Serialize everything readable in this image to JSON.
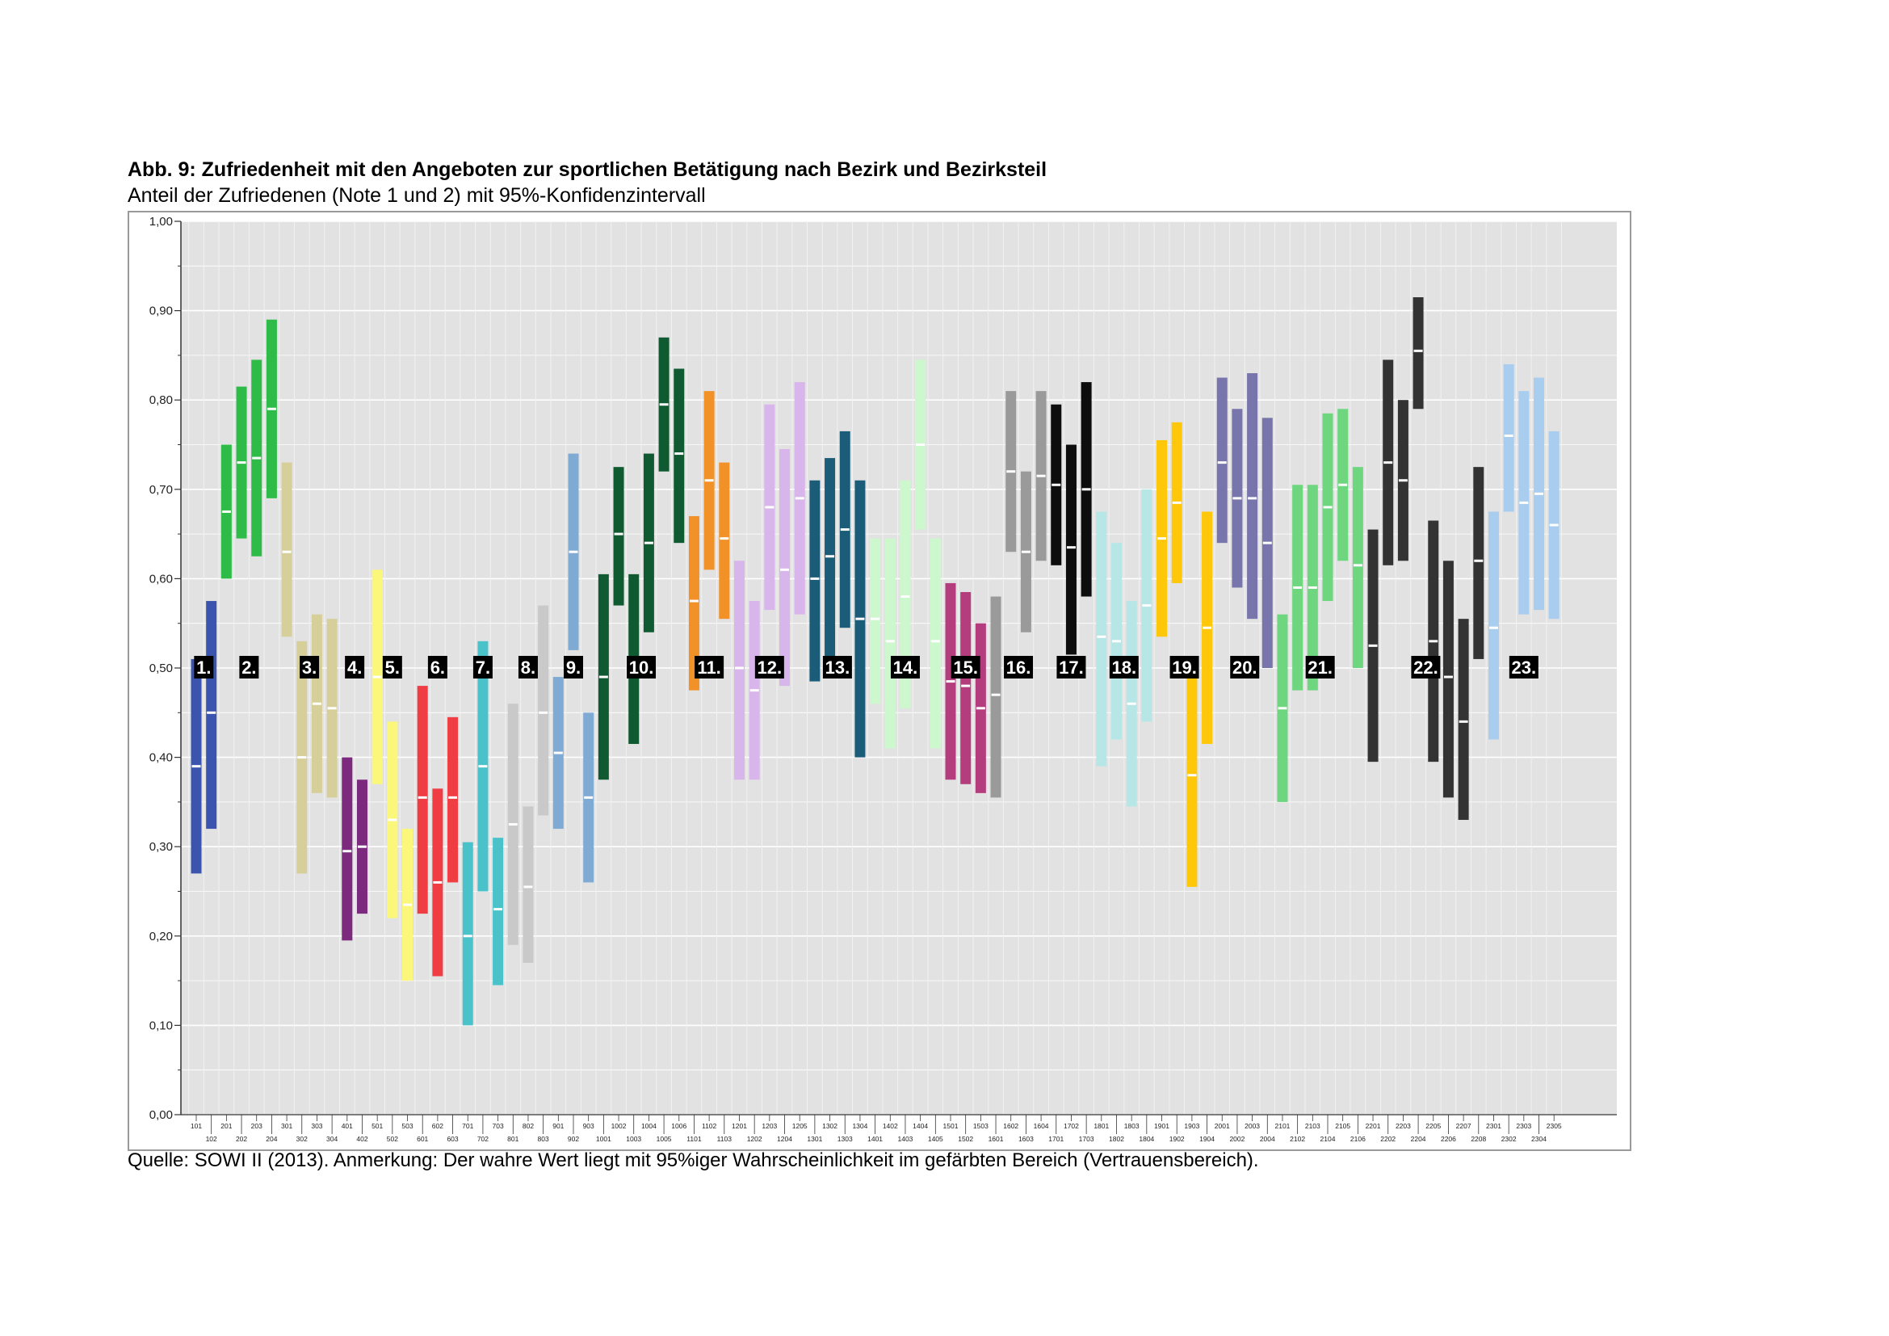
{
  "title": "Abb. 9: Zufriedenheit mit den Angeboten zur sportlichen Betätigung nach Bezirk und Bezirksteil",
  "subtitle": "Anteil der Zufriedenen (Note 1 und 2) mit 95%-Konfidenzintervall",
  "source": "Quelle: SOWI II (2013). Anmerkung: Der wahre Wert liegt mit 95%iger Wahrscheinlichkeit im gefärbten Bereich (Vertrauensbereich).",
  "chart_data": {
    "type": "range-bar",
    "ylim": [
      0,
      1
    ],
    "yticks": [
      "0,00",
      "0,10",
      "0,20",
      "0,30",
      "0,40",
      "0,50",
      "0,60",
      "0,70",
      "0,80",
      "0,90",
      "1,00"
    ],
    "grid": true,
    "groups": [
      {
        "label": "1.",
        "color": "#3b55ae",
        "bars": [
          {
            "id": "101",
            "low": 0.27,
            "mean": 0.39,
            "high": 0.51
          },
          {
            "id": "102",
            "low": 0.32,
            "mean": 0.45,
            "high": 0.575
          }
        ]
      },
      {
        "label": "2.",
        "color": "#2fbb47",
        "bars": [
          {
            "id": "201",
            "low": 0.6,
            "mean": 0.675,
            "high": 0.75
          },
          {
            "id": "202",
            "low": 0.645,
            "mean": 0.73,
            "high": 0.815
          },
          {
            "id": "203",
            "low": 0.625,
            "mean": 0.735,
            "high": 0.845
          },
          {
            "id": "204",
            "low": 0.69,
            "mean": 0.79,
            "high": 0.89
          }
        ]
      },
      {
        "label": "3.",
        "color": "#d7cf9a",
        "bars": [
          {
            "id": "301",
            "low": 0.535,
            "mean": 0.63,
            "high": 0.73
          },
          {
            "id": "302",
            "low": 0.27,
            "mean": 0.4,
            "high": 0.53
          },
          {
            "id": "303",
            "low": 0.36,
            "mean": 0.46,
            "high": 0.56
          },
          {
            "id": "304",
            "low": 0.355,
            "mean": 0.455,
            "high": 0.555
          }
        ]
      },
      {
        "label": "4.",
        "color": "#7b2a7e",
        "bars": [
          {
            "id": "401",
            "low": 0.195,
            "mean": 0.295,
            "high": 0.4
          },
          {
            "id": "402",
            "low": 0.225,
            "mean": 0.3,
            "high": 0.375
          }
        ]
      },
      {
        "label": "5.",
        "color": "#fbf77a",
        "bars": [
          {
            "id": "501",
            "low": 0.37,
            "mean": 0.49,
            "high": 0.61
          },
          {
            "id": "502",
            "low": 0.22,
            "mean": 0.33,
            "high": 0.44
          },
          {
            "id": "503",
            "low": 0.15,
            "mean": 0.235,
            "high": 0.32
          }
        ]
      },
      {
        "label": "6.",
        "color": "#f03c43",
        "bars": [
          {
            "id": "601",
            "low": 0.225,
            "mean": 0.355,
            "high": 0.48
          },
          {
            "id": "602",
            "low": 0.155,
            "mean": 0.26,
            "high": 0.365
          },
          {
            "id": "603",
            "low": 0.26,
            "mean": 0.355,
            "high": 0.445
          }
        ]
      },
      {
        "label": "7.",
        "color": "#49c2c9",
        "bars": [
          {
            "id": "701",
            "low": 0.1,
            "mean": 0.2,
            "high": 0.305
          },
          {
            "id": "702",
            "low": 0.25,
            "mean": 0.39,
            "high": 0.53
          },
          {
            "id": "703",
            "low": 0.145,
            "mean": 0.23,
            "high": 0.31
          }
        ]
      },
      {
        "label": "8.",
        "color": "#c9c9c9",
        "bars": [
          {
            "id": "801",
            "low": 0.19,
            "mean": 0.325,
            "high": 0.46
          },
          {
            "id": "802",
            "low": 0.17,
            "mean": 0.255,
            "high": 0.345
          },
          {
            "id": "803",
            "low": 0.335,
            "mean": 0.45,
            "high": 0.57
          }
        ]
      },
      {
        "label": "9.",
        "color": "#7faad4",
        "bars": [
          {
            "id": "901",
            "low": 0.32,
            "mean": 0.405,
            "high": 0.49
          },
          {
            "id": "902",
            "low": 0.52,
            "mean": 0.63,
            "high": 0.74
          },
          {
            "id": "903",
            "low": 0.26,
            "mean": 0.355,
            "high": 0.45
          }
        ]
      },
      {
        "label": "10.",
        "color": "#0f5a30",
        "bars": [
          {
            "id": "1001",
            "low": 0.375,
            "mean": 0.49,
            "high": 0.605
          },
          {
            "id": "1002",
            "low": 0.57,
            "mean": 0.65,
            "high": 0.725
          },
          {
            "id": "1003",
            "low": 0.415,
            "mean": 0.51,
            "high": 0.605
          },
          {
            "id": "1004",
            "low": 0.54,
            "mean": 0.64,
            "high": 0.74
          },
          {
            "id": "1005",
            "low": 0.72,
            "mean": 0.795,
            "high": 0.87
          },
          {
            "id": "1006",
            "low": 0.64,
            "mean": 0.74,
            "high": 0.835
          }
        ]
      },
      {
        "label": "11.",
        "color": "#f19128",
        "bars": [
          {
            "id": "1101",
            "low": 0.475,
            "mean": 0.575,
            "high": 0.67
          },
          {
            "id": "1102",
            "low": 0.61,
            "mean": 0.71,
            "high": 0.81
          },
          {
            "id": "1103",
            "low": 0.555,
            "mean": 0.645,
            "high": 0.73
          }
        ]
      },
      {
        "label": "12.",
        "color": "#d8b5ea",
        "bars": [
          {
            "id": "1201",
            "low": 0.375,
            "mean": 0.5,
            "high": 0.62
          },
          {
            "id": "1202",
            "low": 0.375,
            "mean": 0.475,
            "high": 0.575
          },
          {
            "id": "1203",
            "low": 0.565,
            "mean": 0.68,
            "high": 0.795
          },
          {
            "id": "1204",
            "low": 0.48,
            "mean": 0.61,
            "high": 0.745
          },
          {
            "id": "1205",
            "low": 0.56,
            "mean": 0.69,
            "high": 0.82
          }
        ]
      },
      {
        "label": "13.",
        "color": "#1b5d79",
        "bars": [
          {
            "id": "1301",
            "low": 0.485,
            "mean": 0.6,
            "high": 0.71
          },
          {
            "id": "1302",
            "low": 0.51,
            "mean": 0.625,
            "high": 0.735
          },
          {
            "id": "1303",
            "low": 0.545,
            "mean": 0.655,
            "high": 0.765
          },
          {
            "id": "1304",
            "low": 0.4,
            "mean": 0.555,
            "high": 0.71
          }
        ]
      },
      {
        "label": "14.",
        "color": "#cdf8cd",
        "bars": [
          {
            "id": "1401",
            "low": 0.46,
            "mean": 0.555,
            "high": 0.645
          },
          {
            "id": "1402",
            "low": 0.41,
            "mean": 0.53,
            "high": 0.645
          },
          {
            "id": "1403",
            "low": 0.455,
            "mean": 0.58,
            "high": 0.71
          },
          {
            "id": "1404",
            "low": 0.655,
            "mean": 0.75,
            "high": 0.845
          },
          {
            "id": "1405",
            "low": 0.41,
            "mean": 0.53,
            "high": 0.645
          }
        ]
      },
      {
        "label": "15.",
        "color": "#b43d7e",
        "bars": [
          {
            "id": "1501",
            "low": 0.375,
            "mean": 0.485,
            "high": 0.595
          },
          {
            "id": "1502",
            "low": 0.37,
            "mean": 0.48,
            "high": 0.585
          },
          {
            "id": "1503",
            "low": 0.36,
            "mean": 0.455,
            "high": 0.55
          }
        ]
      },
      {
        "label": "16.",
        "color": "#9a9a9a",
        "bars": [
          {
            "id": "1601",
            "low": 0.355,
            "mean": 0.47,
            "high": 0.58
          },
          {
            "id": "1602",
            "low": 0.63,
            "mean": 0.72,
            "high": 0.81
          },
          {
            "id": "1603",
            "low": 0.54,
            "mean": 0.63,
            "high": 0.72
          },
          {
            "id": "1604",
            "low": 0.62,
            "mean": 0.715,
            "high": 0.81
          }
        ]
      },
      {
        "label": "17.",
        "color": "#0d0d0d",
        "bars": [
          {
            "id": "1701",
            "low": 0.615,
            "mean": 0.705,
            "high": 0.795
          },
          {
            "id": "1702",
            "low": 0.515,
            "mean": 0.635,
            "high": 0.75
          },
          {
            "id": "1703",
            "low": 0.58,
            "mean": 0.7,
            "high": 0.82
          }
        ]
      },
      {
        "label": "18.",
        "color": "#b7e6e6",
        "bars": [
          {
            "id": "1801",
            "low": 0.39,
            "mean": 0.535,
            "high": 0.675
          },
          {
            "id": "1802",
            "low": 0.42,
            "mean": 0.53,
            "high": 0.64
          },
          {
            "id": "1803",
            "low": 0.345,
            "mean": 0.46,
            "high": 0.575
          },
          {
            "id": "1804",
            "low": 0.44,
            "mean": 0.57,
            "high": 0.7
          }
        ]
      },
      {
        "label": "19.",
        "color": "#ffc70a",
        "bars": [
          {
            "id": "1901",
            "low": 0.535,
            "mean": 0.645,
            "high": 0.755
          },
          {
            "id": "1902",
            "low": 0.595,
            "mean": 0.685,
            "high": 0.775
          },
          {
            "id": "1903",
            "low": 0.255,
            "mean": 0.38,
            "high": 0.505
          },
          {
            "id": "1904",
            "low": 0.415,
            "mean": 0.545,
            "high": 0.675
          }
        ]
      },
      {
        "label": "20.",
        "color": "#7775ab",
        "bars": [
          {
            "id": "2001",
            "low": 0.64,
            "mean": 0.73,
            "high": 0.825
          },
          {
            "id": "2002",
            "low": 0.59,
            "mean": 0.69,
            "high": 0.79
          },
          {
            "id": "2003",
            "low": 0.555,
            "mean": 0.69,
            "high": 0.83
          },
          {
            "id": "2004",
            "low": 0.5,
            "mean": 0.64,
            "high": 0.78
          }
        ]
      },
      {
        "label": "21.",
        "color": "#6dd67f",
        "bars": [
          {
            "id": "2101",
            "low": 0.35,
            "mean": 0.455,
            "high": 0.56
          },
          {
            "id": "2102",
            "low": 0.475,
            "mean": 0.59,
            "high": 0.705
          },
          {
            "id": "2103",
            "low": 0.475,
            "mean": 0.59,
            "high": 0.705
          },
          {
            "id": "2104",
            "low": 0.575,
            "mean": 0.68,
            "high": 0.785
          },
          {
            "id": "2105",
            "low": 0.62,
            "mean": 0.705,
            "high": 0.79
          },
          {
            "id": "2106",
            "low": 0.5,
            "mean": 0.615,
            "high": 0.725
          }
        ]
      },
      {
        "label": "22.",
        "color": "#333333",
        "bars": [
          {
            "id": "2201",
            "low": 0.395,
            "mean": 0.525,
            "high": 0.655
          },
          {
            "id": "2202",
            "low": 0.615,
            "mean": 0.73,
            "high": 0.845
          },
          {
            "id": "2203",
            "low": 0.62,
            "mean": 0.71,
            "high": 0.8
          },
          {
            "id": "2204",
            "low": 0.79,
            "mean": 0.855,
            "high": 0.915
          },
          {
            "id": "2205",
            "low": 0.395,
            "mean": 0.53,
            "high": 0.665
          },
          {
            "id": "2206",
            "low": 0.355,
            "mean": 0.49,
            "high": 0.62
          },
          {
            "id": "2207",
            "low": 0.33,
            "mean": 0.44,
            "high": 0.555
          },
          {
            "id": "2208",
            "low": 0.51,
            "mean": 0.62,
            "high": 0.725
          }
        ]
      },
      {
        "label": "23.",
        "color": "#a8cdee",
        "bars": [
          {
            "id": "2301",
            "low": 0.42,
            "mean": 0.545,
            "high": 0.675
          },
          {
            "id": "2302",
            "low": 0.675,
            "mean": 0.76,
            "high": 0.84
          },
          {
            "id": "2303",
            "low": 0.56,
            "mean": 0.685,
            "high": 0.81
          },
          {
            "id": "2304",
            "low": 0.565,
            "mean": 0.695,
            "high": 0.825
          },
          {
            "id": "2305",
            "low": 0.555,
            "mean": 0.66,
            "high": 0.765
          }
        ]
      }
    ]
  }
}
